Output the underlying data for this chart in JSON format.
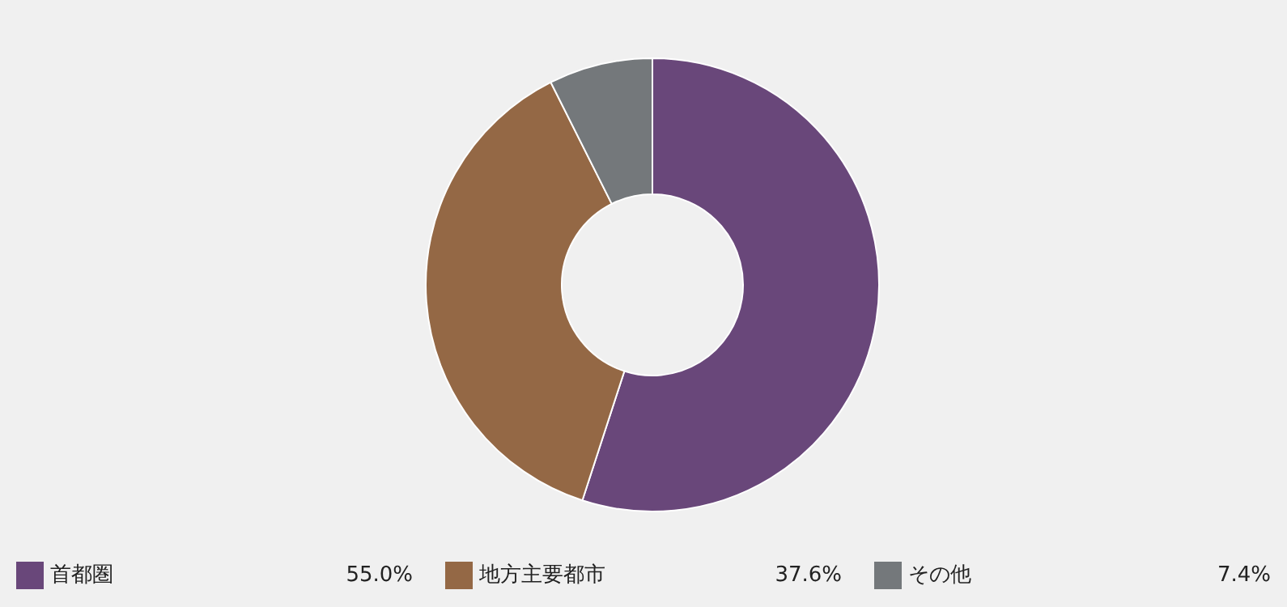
{
  "chart_data": {
    "type": "donut",
    "categories": [
      "首都圏",
      "地方主要都市",
      "その他"
    ],
    "values": [
      55.0,
      37.6,
      7.4
    ],
    "value_labels": [
      "55.0%",
      "37.6%",
      "7.4%"
    ],
    "colors": [
      "#69477a",
      "#946845",
      "#74787b"
    ],
    "legend": "bottom"
  }
}
